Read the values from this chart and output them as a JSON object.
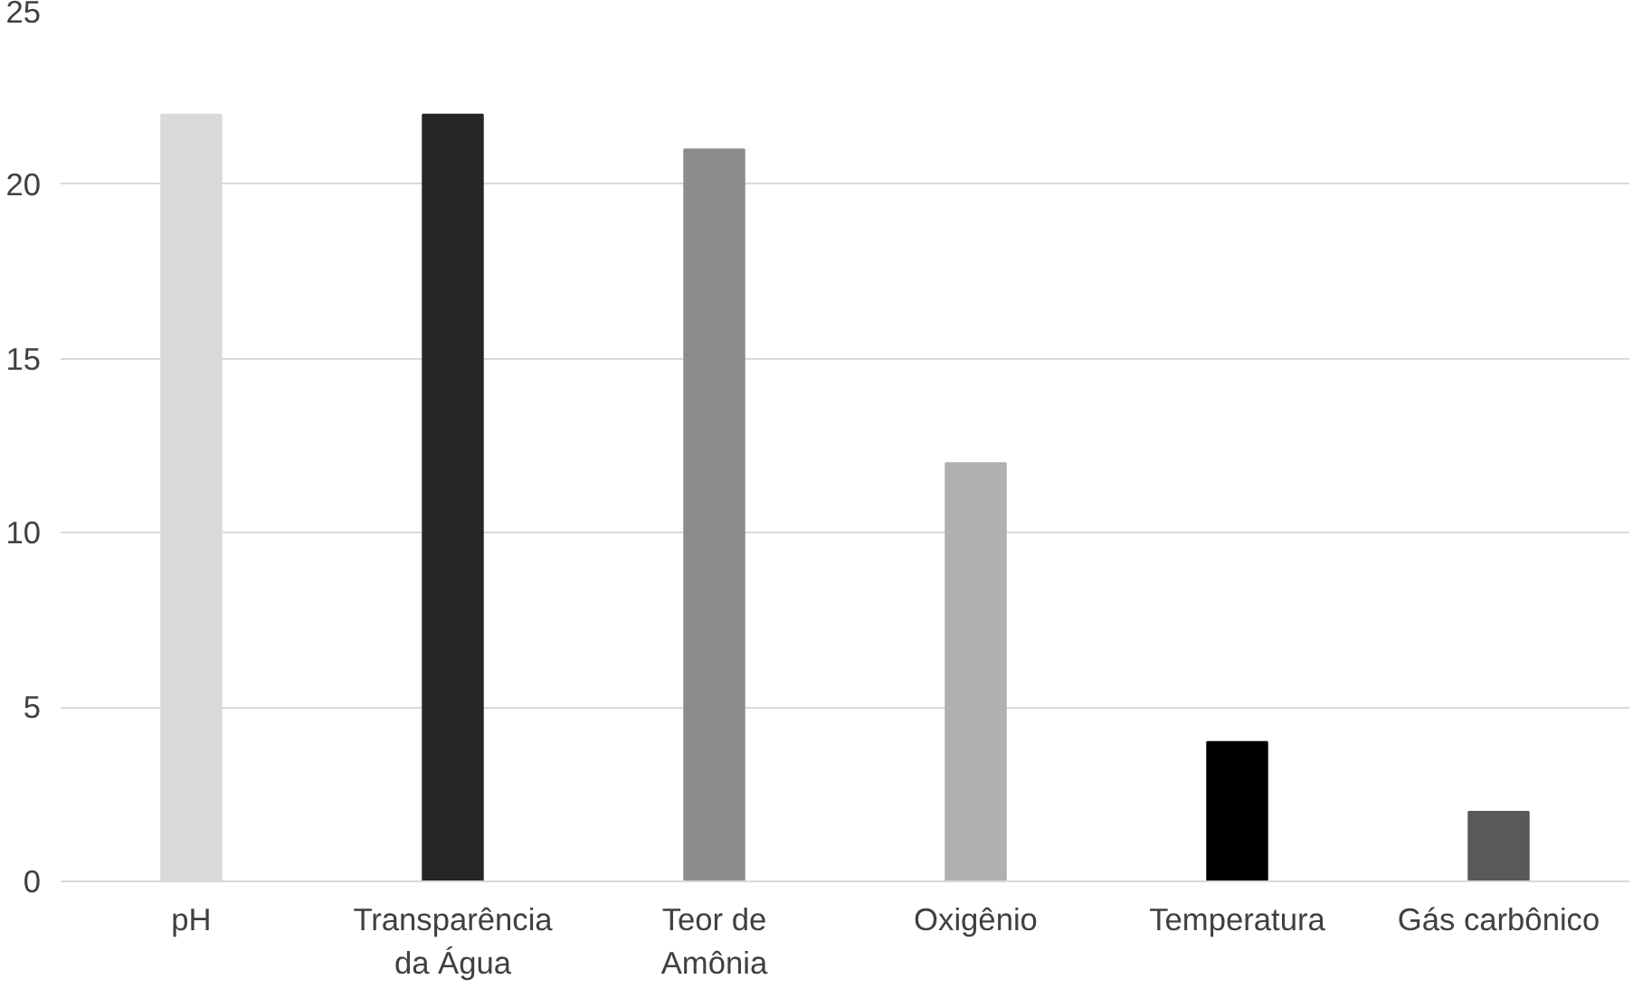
{
  "chart_data": {
    "type": "bar",
    "categories": [
      "pH",
      "Transparência da Água",
      "Teor de Amônia",
      "Oxigênio",
      "Temperatura",
      "Gás carbônico"
    ],
    "values": [
      22,
      22,
      21,
      12,
      4,
      2
    ],
    "colors": [
      "#d9d9d9",
      "#262626",
      "#8c8c8c",
      "#b0b0b0",
      "#000000",
      "#595959"
    ],
    "ylim": [
      0,
      25
    ],
    "yticks": [
      0,
      5,
      10,
      15,
      20,
      25
    ],
    "grid": "y"
  }
}
